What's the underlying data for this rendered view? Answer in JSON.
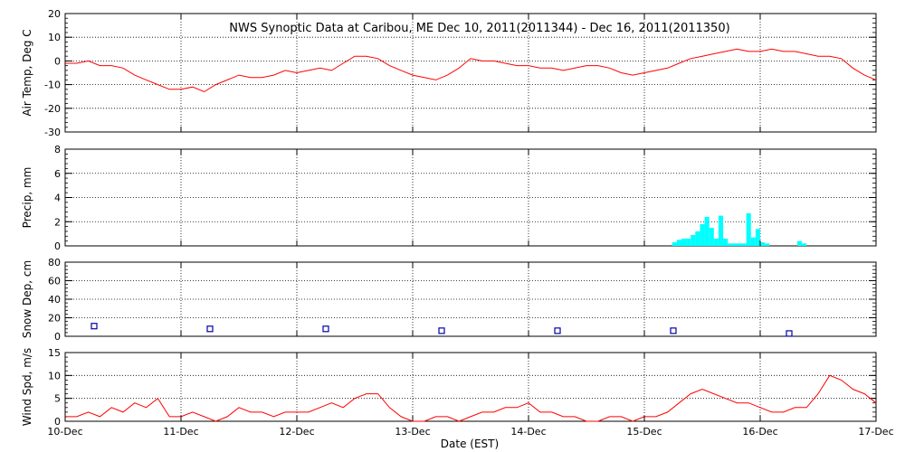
{
  "chart_data": {
    "title": "NWS Synoptic Data at Caribou, ME    Dec 10, 2011(2011344) - Dec 16, 2011(2011350)",
    "xlabel": "Date (EST)",
    "x_ticks": [
      "10-Dec",
      "11-Dec",
      "12-Dec",
      "13-Dec",
      "14-Dec",
      "15-Dec",
      "16-Dec",
      "17-Dec"
    ],
    "x_range_days": [
      0,
      7
    ],
    "panels": [
      {
        "id": "air-temp",
        "type": "line",
        "ylabel": "Air Temp, Deg C",
        "ylim": [
          -30,
          20
        ],
        "yticks": [
          20,
          10,
          0,
          -10,
          -20,
          -30
        ],
        "color": "#ff0000",
        "series": [
          {
            "x": [
              0,
              0.1,
              0.2,
              0.3,
              0.4,
              0.5,
              0.6,
              0.7,
              0.8,
              0.9,
              1.0,
              1.1,
              1.2,
              1.3,
              1.4,
              1.5,
              1.6,
              1.7,
              1.8,
              1.9,
              2.0,
              2.1,
              2.2,
              2.3,
              2.4,
              2.5,
              2.6,
              2.7,
              2.8,
              2.9,
              3.0,
              3.1,
              3.2,
              3.3,
              3.4,
              3.5,
              3.6,
              3.7,
              3.8,
              3.9,
              4.0,
              4.1,
              4.2,
              4.3,
              4.4,
              4.5,
              4.6,
              4.7,
              4.8,
              4.9,
              5.0,
              5.1,
              5.2,
              5.3,
              5.4,
              5.5,
              5.6,
              5.7,
              5.8,
              5.9,
              6.0,
              6.1,
              6.2,
              6.3,
              6.4,
              6.5,
              6.6,
              6.7,
              6.8,
              6.9,
              7.0
            ],
            "y": [
              -1,
              -1,
              0,
              -2,
              -2,
              -3,
              -6,
              -8,
              -10,
              -12,
              -12,
              -11,
              -13,
              -10,
              -8,
              -6,
              -7,
              -7,
              -6,
              -4,
              -5,
              -4,
              -3,
              -4,
              -1,
              2,
              2,
              1,
              -2,
              -4,
              -6,
              -7,
              -8,
              -6,
              -3,
              1,
              0,
              0,
              -1,
              -2,
              -2,
              -3,
              -3,
              -4,
              -3,
              -2,
              -2,
              -3,
              -5,
              -6,
              -5,
              -4,
              -3,
              -1,
              1,
              2,
              3,
              4,
              5,
              4,
              4,
              5,
              4,
              4,
              3,
              2,
              2,
              1,
              -3,
              -6,
              -8
            ]
          }
        ]
      },
      {
        "id": "precip",
        "type": "bar",
        "ylabel": "Precip, mm",
        "ylim": [
          0,
          8
        ],
        "yticks": [
          0,
          2,
          4,
          6,
          8
        ],
        "color": "#00ffff",
        "bar_width_days": 0.04,
        "bars": {
          "x": [
            5.26,
            5.3,
            5.34,
            5.38,
            5.42,
            5.46,
            5.5,
            5.54,
            5.58,
            5.62,
            5.66,
            5.7,
            5.74,
            5.78,
            5.82,
            5.86,
            5.9,
            5.94,
            5.98,
            6.02,
            6.06,
            6.34,
            6.38
          ],
          "values": [
            0.3,
            0.5,
            0.6,
            0.6,
            0.9,
            1.2,
            1.8,
            2.4,
            1.5,
            0.6,
            2.5,
            0.6,
            0.2,
            0.2,
            0.2,
            0.2,
            2.7,
            0.7,
            1.4,
            0.3,
            0.2,
            0.4,
            0.2
          ]
        }
      },
      {
        "id": "snow-depth",
        "type": "scatter",
        "ylabel": "Snow Dep, cm",
        "ylim": [
          0,
          80
        ],
        "yticks": [
          0,
          20,
          40,
          60,
          80
        ],
        "color": "#0000aa",
        "points": {
          "x": [
            0.25,
            1.25,
            2.25,
            3.25,
            4.25,
            5.25,
            6.25
          ],
          "y": [
            11,
            8,
            8,
            6,
            6,
            6,
            3
          ]
        }
      },
      {
        "id": "wind-speed",
        "type": "line",
        "ylabel": "Wind Spd, m/s",
        "ylim": [
          0,
          15
        ],
        "yticks": [
          0,
          5,
          10,
          15
        ],
        "color": "#ff0000",
        "series": [
          {
            "x": [
              0,
              0.1,
              0.2,
              0.3,
              0.4,
              0.5,
              0.6,
              0.7,
              0.8,
              0.9,
              1.0,
              1.1,
              1.2,
              1.3,
              1.4,
              1.5,
              1.6,
              1.7,
              1.8,
              1.9,
              2.0,
              2.1,
              2.2,
              2.3,
              2.4,
              2.5,
              2.6,
              2.7,
              2.8,
              2.9,
              3.0,
              3.1,
              3.2,
              3.3,
              3.4,
              3.5,
              3.6,
              3.7,
              3.8,
              3.9,
              4.0,
              4.1,
              4.2,
              4.3,
              4.4,
              4.5,
              4.6,
              4.7,
              4.8,
              4.9,
              5.0,
              5.1,
              5.2,
              5.3,
              5.4,
              5.5,
              5.6,
              5.7,
              5.8,
              5.9,
              6.0,
              6.1,
              6.2,
              6.3,
              6.4,
              6.5,
              6.6,
              6.7,
              6.8,
              6.9,
              7.0
            ],
            "y": [
              1,
              1,
              2,
              1,
              3,
              2,
              4,
              3,
              5,
              1,
              1,
              2,
              1,
              0,
              1,
              3,
              2,
              2,
              1,
              2,
              2,
              2,
              3,
              4,
              3,
              5,
              6,
              6,
              3,
              1,
              0,
              0,
              1,
              1,
              0,
              1,
              2,
              2,
              3,
              3,
              4,
              2,
              2,
              1,
              1,
              0,
              0,
              1,
              1,
              0,
              1,
              1,
              2,
              4,
              6,
              7,
              6,
              5,
              4,
              4,
              3,
              2,
              2,
              3,
              3,
              6,
              10,
              9,
              7,
              6,
              4
            ]
          }
        ]
      }
    ]
  }
}
